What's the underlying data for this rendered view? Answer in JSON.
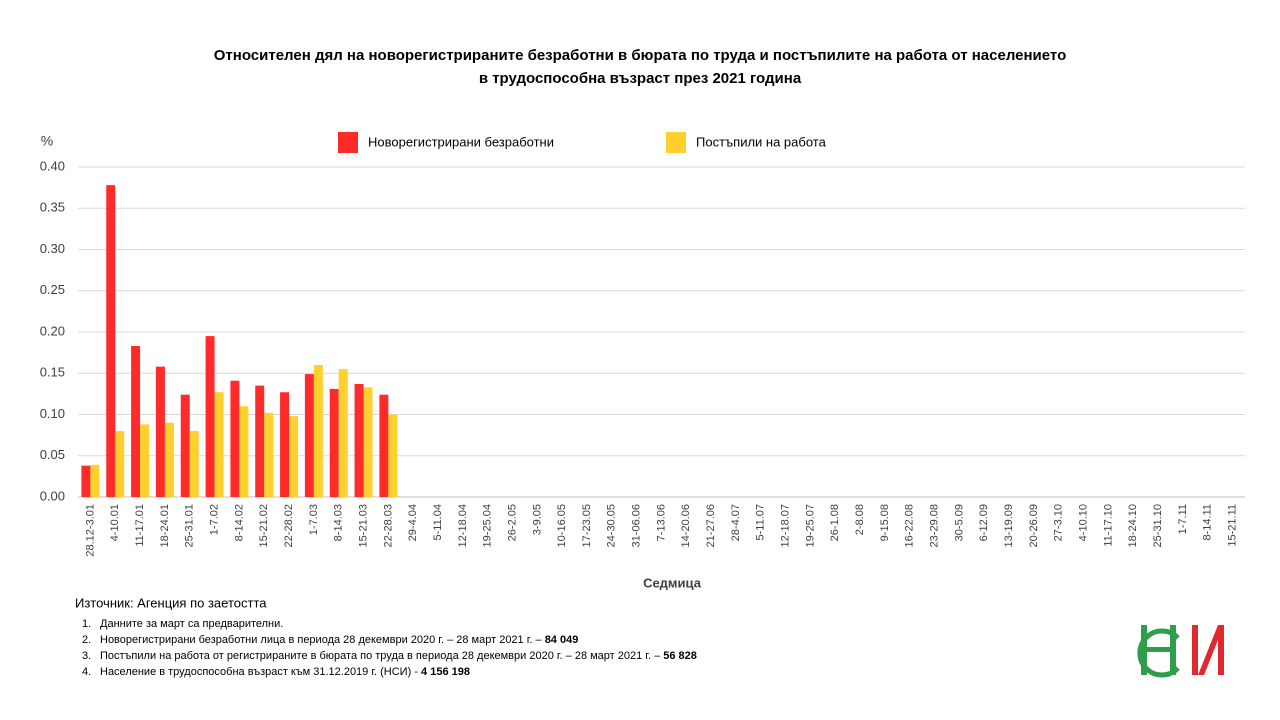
{
  "chart_data": {
    "type": "bar",
    "title": "Относителен дял на новорегистрираните безработни в бюрата по труда и постъпилите на работа от населението",
    "subtitle": "в трудоспособна възраст през 2021 година",
    "y_label": "%",
    "x_label": "Седмица",
    "categories": [
      "28.12-3.01",
      "4-10.01",
      "11-17.01",
      "18-24.01",
      "25-31.01",
      "1-7.02",
      "8-14.02",
      "15-21.02",
      "22-28.02",
      "1-7.03",
      "8-14.03",
      "15-21.03",
      "22-28.03",
      "29-4.04",
      "5-11.04",
      "12-18.04",
      "19-25.04",
      "26-2.05",
      "3-9.05",
      "10-16.05",
      "17-23.05",
      "24-30.05",
      "31-06.06",
      "7-13.06",
      "14-20.06",
      "21-27.06",
      "28-4.07",
      "5-11.07",
      "12-18.07",
      "19-25.07",
      "26-1.08",
      "2-8.08",
      "9-15.08",
      "16-22.08",
      "23-29.08",
      "30-5.09",
      "6-12.09",
      "13-19.09",
      "20-26.09",
      "27-3.10",
      "4-10.10",
      "11-17.10",
      "18-24.10",
      "25-31.10",
      "1-7.11",
      "8-14.11",
      "15-21.11"
    ],
    "series": [
      {
        "name": "Новорегистрирани безработни",
        "color": "#ff2b2b",
        "values": [
          0.038,
          0.378,
          0.183,
          0.158,
          0.124,
          0.195,
          0.141,
          0.135,
          0.127,
          0.149,
          0.131,
          0.137,
          0.124,
          null,
          null,
          null,
          null,
          null,
          null,
          null,
          null,
          null,
          null,
          null,
          null,
          null,
          null,
          null,
          null,
          null,
          null,
          null,
          null,
          null,
          null,
          null,
          null,
          null,
          null,
          null,
          null,
          null,
          null,
          null,
          null,
          null,
          null
        ]
      },
      {
        "name": "Постъпили на работа",
        "color": "#ffd02e",
        "values": [
          0.039,
          0.08,
          0.088,
          0.09,
          0.08,
          0.127,
          0.11,
          0.102,
          0.098,
          0.16,
          0.155,
          0.133,
          0.1,
          null,
          null,
          null,
          null,
          null,
          null,
          null,
          null,
          null,
          null,
          null,
          null,
          null,
          null,
          null,
          null,
          null,
          null,
          null,
          null,
          null,
          null,
          null,
          null,
          null,
          null,
          null,
          null,
          null,
          null,
          null,
          null,
          null,
          null
        ]
      }
    ],
    "ylim": [
      0,
      0.4
    ],
    "yticks": [
      {
        "value": 0,
        "label": "0.00"
      },
      {
        "value": 0.05,
        "label": "0.05"
      },
      {
        "value": 0.1,
        "label": "0.10"
      },
      {
        "value": 0.15,
        "label": "0.15"
      },
      {
        "value": 0.2,
        "label": "0.20"
      },
      {
        "value": 0.25,
        "label": "0.25"
      },
      {
        "value": 0.3,
        "label": "0.30"
      },
      {
        "value": 0.35,
        "label": "0.35"
      },
      {
        "value": 0.4,
        "label": "0.40"
      }
    ],
    "grid": true,
    "legend": "top",
    "source": "Източник: Агенция по заетостта",
    "notes": [
      {
        "number": "1.",
        "text": "Данните за март са предварителни."
      },
      {
        "number": "2.",
        "text": "Новорегистрирани безработни лица в периода 28 декември 2020 г. – 28 март 2021 г. – ",
        "bold": "84 049"
      },
      {
        "number": "3.",
        "text": "Постъпили на работа от регистрираните в бюрата по труда в периода 28 декември 2020 г. – 28 март 2021 г. – ",
        "bold": "56 828"
      },
      {
        "number": "4.",
        "text": "Население в трудоспособна възраст към 31.12.2019 г. (НСИ) - ",
        "bold": "4 156 198"
      }
    ]
  }
}
